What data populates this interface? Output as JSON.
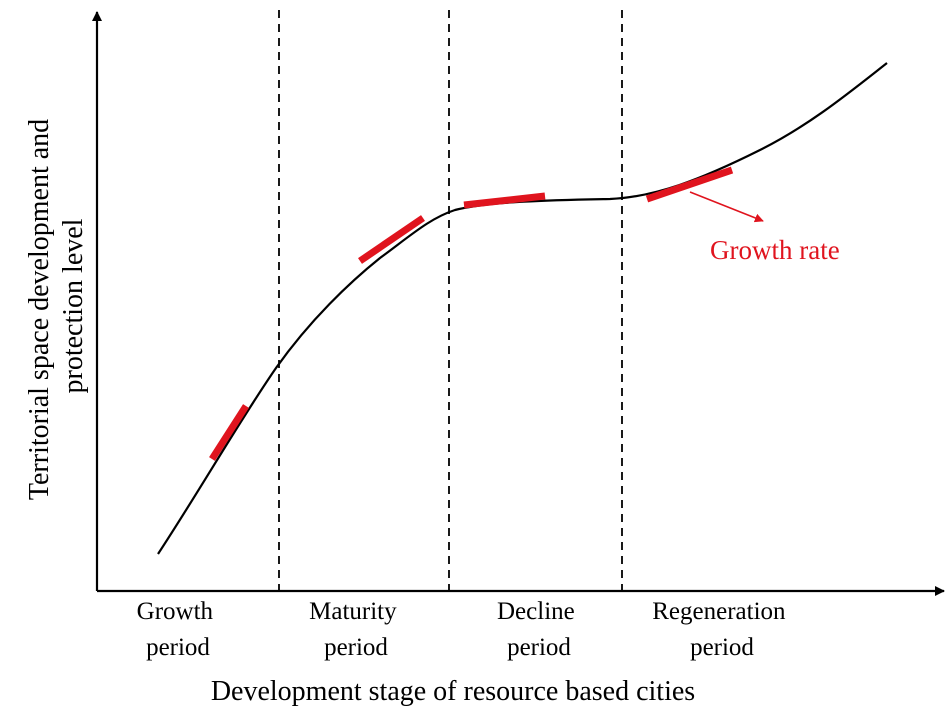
{
  "diagram": {
    "y_axis_title_line1": "Territorial space development and",
    "y_axis_title_line2": "protection level",
    "x_axis_title": "Development stage of resource based cities",
    "stages": [
      {
        "line1": "Growth",
        "line2": "period"
      },
      {
        "line1": "Maturity",
        "line2": "period"
      },
      {
        "line1": "Decline",
        "line2": "period"
      },
      {
        "line1": "Regeneration",
        "line2": "period"
      }
    ],
    "annotation": "Growth rate",
    "colors": {
      "curve": "#000000",
      "axes": "#000000",
      "tangent": "#e0141e",
      "annotation": "#e0141e"
    }
  }
}
